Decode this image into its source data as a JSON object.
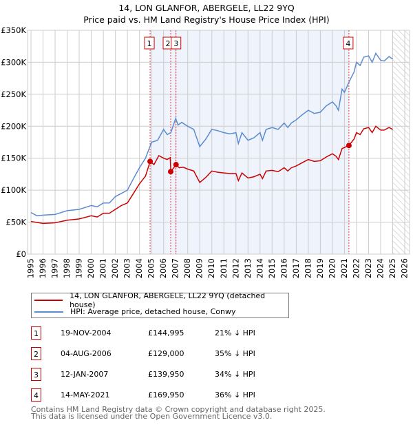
{
  "chart_data": {
    "type": "line",
    "title": "14, LON GLANFOR, ABERGELE, LL22 9YQ",
    "subtitle": "Price paid vs. HM Land Registry's House Price Index (HPI)",
    "xlim": [
      1995,
      2026
    ],
    "ylim": [
      0,
      350000
    ],
    "xticks": [
      "1995",
      "1996",
      "1997",
      "1998",
      "1999",
      "2000",
      "2001",
      "2002",
      "2003",
      "2004",
      "2005",
      "2006",
      "2007",
      "2008",
      "2009",
      "2010",
      "2011",
      "2012",
      "2013",
      "2014",
      "2015",
      "2016",
      "2017",
      "2018",
      "2019",
      "2020",
      "2021",
      "2022",
      "2023",
      "2024",
      "2025",
      "2026"
    ],
    "yticks": [
      {
        "v": 0,
        "l": "£0"
      },
      {
        "v": 50000,
        "l": "£50K"
      },
      {
        "v": 100000,
        "l": "£100K"
      },
      {
        "v": 150000,
        "l": "£150K"
      },
      {
        "v": 200000,
        "l": "£200K"
      },
      {
        "v": 250000,
        "l": "£250K"
      },
      {
        "v": 300000,
        "l": "£300K"
      },
      {
        "v": 350000,
        "l": "£350K"
      }
    ],
    "grid": true,
    "shaded_range": [
      2004.88,
      2021.37
    ],
    "hatched_range": [
      2025.0,
      2026
    ],
    "series": [
      {
        "name": "14, LON GLANFOR, ABERGELE, LL22 9YQ (detached house)",
        "color": "#cc0000",
        "x": [
          1995,
          1996,
          1997,
          1998,
          1999,
          2000,
          2000.5,
          2001,
          2001.5,
          2002,
          2002.5,
          2003,
          2003.5,
          2004,
          2004.5,
          2004.88,
          2005.2,
          2005.6,
          2006,
          2006.3,
          2006.55,
          2006.6,
          2007.04,
          2007.3,
          2007.6,
          2008,
          2008.5,
          2009,
          2009.5,
          2010,
          2010.5,
          2011,
          2011.5,
          2012,
          2012.2,
          2012.5,
          2013,
          2013.5,
          2014,
          2014.2,
          2014.5,
          2015,
          2015.5,
          2016,
          2016.3,
          2016.6,
          2017,
          2017.5,
          2018,
          2018.5,
          2019,
          2019.5,
          2020,
          2020.3,
          2020.5,
          2020.8,
          2021.37,
          2021.8,
          2022,
          2022.3,
          2022.6,
          2023,
          2023.3,
          2023.6,
          2024,
          2024.3,
          2024.7,
          2025
        ],
        "y": [
          51,
          48,
          49,
          53,
          55,
          60,
          58,
          64,
          64,
          70,
          76,
          80,
          95,
          110,
          122,
          145,
          140,
          154,
          150,
          148,
          151,
          129,
          140,
          135,
          136,
          133,
          130,
          112,
          120,
          130,
          128,
          127,
          126,
          126,
          115,
          127,
          119,
          121,
          125,
          118,
          130,
          131,
          129,
          135,
          130,
          135,
          138,
          143,
          148,
          145,
          146,
          152,
          157,
          153,
          148,
          165,
          170,
          180,
          190,
          187,
          196,
          198,
          190,
          200,
          194,
          194,
          198,
          195
        ]
      },
      {
        "name": "HPI: Average price, detached house, Conwy",
        "color": "#5b8bd0",
        "x": [
          1995,
          1995.5,
          1996,
          1997,
          1998,
          1999,
          2000,
          2000.5,
          2001,
          2001.5,
          2002,
          2002.5,
          2003,
          2003.5,
          2004,
          2004.5,
          2005,
          2005.5,
          2006,
          2006.3,
          2006.6,
          2007,
          2007.2,
          2007.5,
          2008,
          2008.5,
          2009,
          2009.5,
          2010,
          2010.5,
          2011,
          2011.5,
          2012,
          2012.2,
          2012.5,
          2013,
          2013.5,
          2014,
          2014.2,
          2014.5,
          2015,
          2015.5,
          2016,
          2016.3,
          2016.6,
          2017,
          2017.5,
          2018,
          2018.5,
          2019,
          2019.5,
          2020,
          2020.3,
          2020.5,
          2020.8,
          2021,
          2021.4,
          2021.8,
          2022,
          2022.3,
          2022.6,
          2023,
          2023.3,
          2023.6,
          2024,
          2024.3,
          2024.7,
          2025
        ],
        "y": [
          65,
          60,
          61,
          62,
          68,
          70,
          76,
          74,
          80,
          80,
          90,
          95,
          100,
          118,
          135,
          150,
          175,
          178,
          195,
          187,
          190,
          212,
          202,
          206,
          200,
          195,
          168,
          180,
          195,
          193,
          190,
          188,
          190,
          173,
          190,
          178,
          182,
          190,
          178,
          195,
          198,
          195,
          205,
          198,
          205,
          210,
          218,
          225,
          220,
          222,
          232,
          238,
          232,
          225,
          258,
          253,
          270,
          285,
          300,
          295,
          308,
          310,
          300,
          314,
          303,
          302,
          309,
          305
        ]
      }
    ],
    "sales": [
      {
        "n": "1",
        "date": "19-NOV-2004",
        "x": 2004.88,
        "price": "£144,995",
        "value": 144995,
        "hpi": "21% ↓ HPI"
      },
      {
        "n": "2",
        "date": "04-AUG-2006",
        "x": 2006.59,
        "price": "£129,000",
        "value": 129000,
        "hpi": "35% ↓ HPI"
      },
      {
        "n": "3",
        "date": "12-JAN-2007",
        "x": 2007.03,
        "price": "£139,950",
        "value": 139950,
        "hpi": "34% ↓ HPI"
      },
      {
        "n": "4",
        "date": "14-MAY-2021",
        "x": 2021.37,
        "price": "£169,950",
        "value": 169950,
        "hpi": "36% ↓ HPI"
      }
    ]
  },
  "legend": {
    "property": "14, LON GLANFOR, ABERGELE, LL22 9YQ (detached house)",
    "hpi": "HPI: Average price, detached house, Conwy"
  },
  "footer": {
    "line1": "Contains HM Land Registry data © Crown copyright and database right 2025.",
    "line2": "This data is licensed under the Open Government Licence v3.0."
  }
}
